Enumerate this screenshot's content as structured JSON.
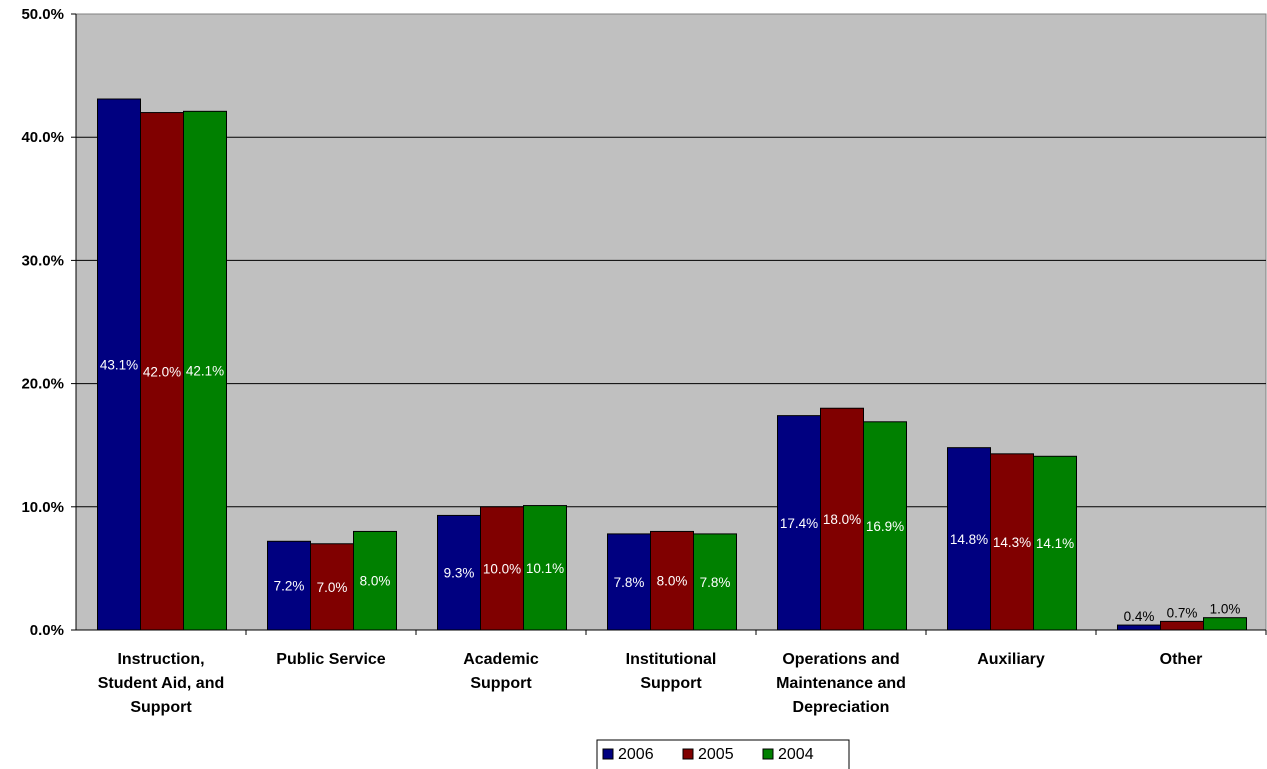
{
  "chart_data": {
    "type": "bar",
    "categories": [
      [
        "Instruction,",
        "Student Aid, and",
        "Support"
      ],
      [
        "Public Service"
      ],
      [
        "Academic",
        "Support"
      ],
      [
        "Institutional",
        "Support"
      ],
      [
        "Operations and",
        "Maintenance and",
        "Depreciation"
      ],
      [
        "Auxiliary"
      ],
      [
        "Other"
      ]
    ],
    "series": [
      {
        "name": "2006",
        "color": "#000080",
        "values": [
          43.1,
          7.2,
          9.3,
          7.8,
          17.4,
          14.8,
          0.4
        ],
        "labels": [
          "43.1%",
          "7.2%",
          "9.3%",
          "7.8%",
          "17.4%",
          "14.8%",
          "0.4%"
        ]
      },
      {
        "name": "2005",
        "color": "#800000",
        "values": [
          42.0,
          7.0,
          10.0,
          8.0,
          18.0,
          14.3,
          0.7
        ],
        "labels": [
          "42.0%",
          "7.0%",
          "10.0%",
          "8.0%",
          "18.0%",
          "14.3%",
          "0.7%"
        ]
      },
      {
        "name": "2004",
        "color": "#008000",
        "values": [
          42.1,
          8.0,
          10.1,
          7.8,
          16.9,
          14.1,
          1.0
        ],
        "labels": [
          "42.1%",
          "8.0%",
          "10.1%",
          "7.8%",
          "16.9%",
          "14.1%",
          "1.0%"
        ]
      }
    ],
    "yticks": [
      "0.0%",
      "10.0%",
      "20.0%",
      "30.0%",
      "40.0%",
      "50.0%"
    ],
    "ylim": [
      0,
      50
    ],
    "grid": true,
    "plot_background": "#c0c0c0",
    "legend_position": "bottom-center"
  }
}
